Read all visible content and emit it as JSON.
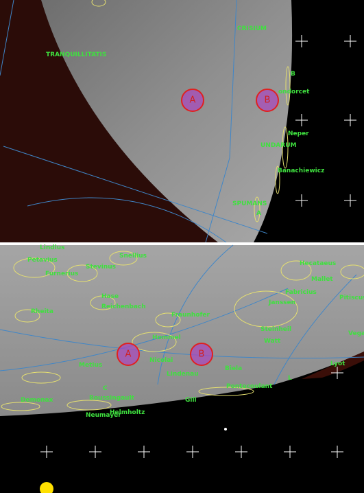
{
  "top_panel": {
    "labels": [
      "CRISIUM",
      "TRANQUILLITATIS",
      "B",
      "ondorcet",
      "Neper",
      "UNDARUM",
      "Banachiewicz",
      "SPUMANS",
      "A"
    ],
    "markers": [
      "A",
      "B"
    ]
  },
  "bottom_panel": {
    "labels": [
      "Lindlus",
      "Petavius",
      "Furnerius",
      "Stevinus",
      "Snellius",
      "Hase",
      "Reichenbach",
      "Rheita",
      "Fraunhofer",
      "Hecataeus",
      "Mallet",
      "Janssen",
      "Fabricius",
      "Pitiscus",
      "Steinheil",
      "Watt",
      "Vega",
      "Hommel",
      "Nicolai",
      "Lindenau",
      "Metius",
      "Biela",
      "Pontecoulant",
      "Lyot",
      "Demonax",
      "Boussingault",
      "Neumayer",
      "Helmholtz",
      "Gill",
      "L",
      "C"
    ],
    "markers": [
      "A",
      "B"
    ]
  }
}
